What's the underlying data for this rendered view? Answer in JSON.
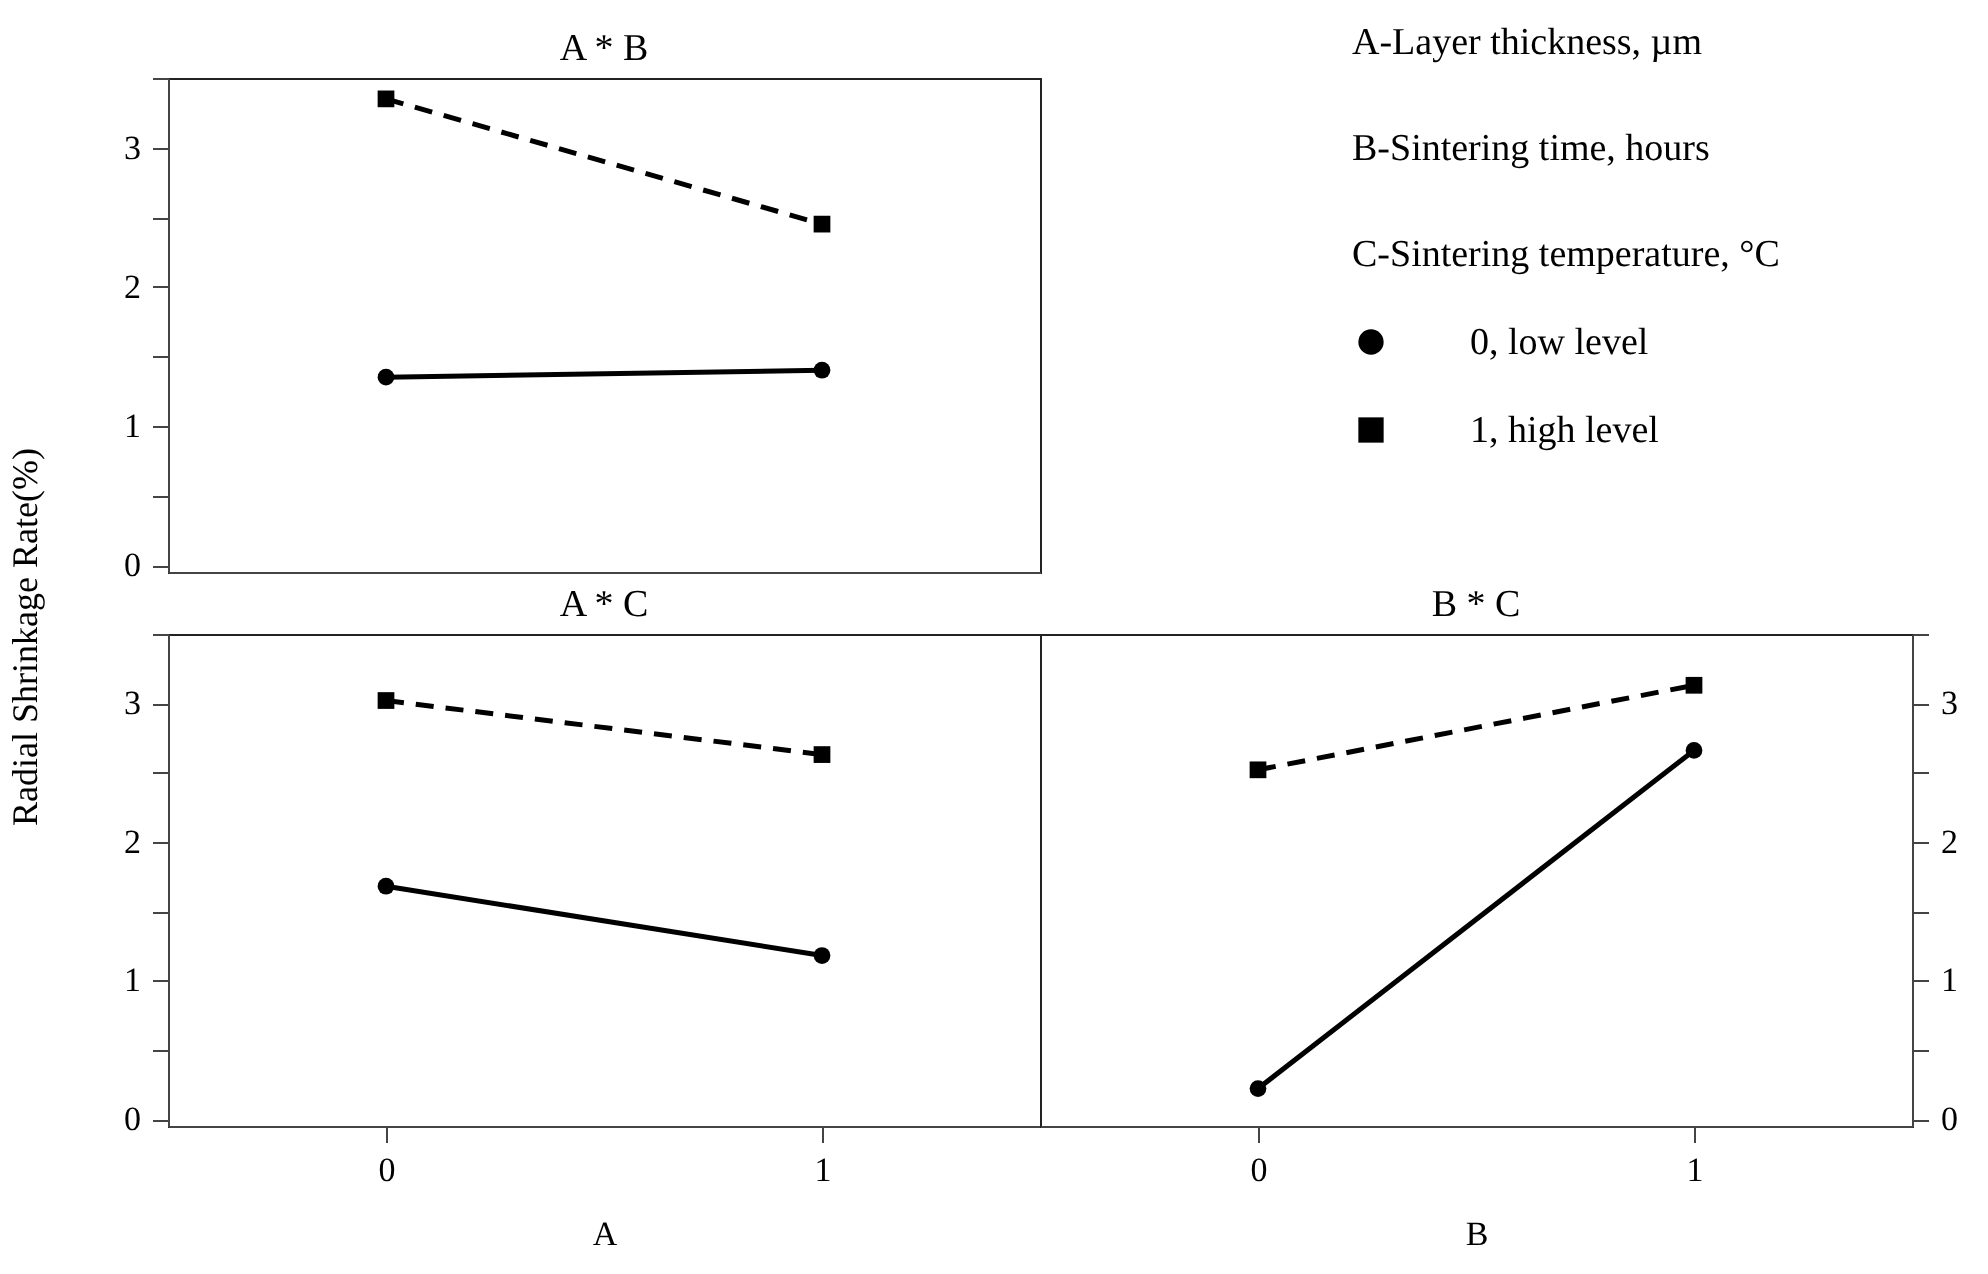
{
  "chart_data": [
    {
      "type": "line",
      "title": "A * B",
      "ylabel": "Radial Shrinkage Rate(%)",
      "categories": [
        "0",
        "1"
      ],
      "ylim": [
        -0.05,
        3.5
      ],
      "yticks": [
        0,
        {
          "value": 0.5,
          "label": null
        },
        1,
        {
          "value": 1.5,
          "label": null
        },
        2,
        {
          "value": 2.5,
          "label": null
        },
        3,
        {
          "value": 3.5,
          "label": null
        }
      ],
      "tick_labels": "y",
      "legend": "right",
      "grid": false,
      "annotations": [
        "A-Layer thickness, µm",
        "B-Sintering time, hours",
        "C-Sintering temperature, °C"
      ],
      "series": [
        {
          "name": "0, low level",
          "color": "#000000",
          "marker": "circle",
          "line_style": "solid",
          "values": [
            1.35,
            1.4
          ]
        },
        {
          "name": "1, high level",
          "color": "#000000",
          "marker": "square",
          "line_style": "dashed",
          "values": [
            3.35,
            2.45
          ]
        }
      ]
    },
    {
      "type": "line",
      "title": "A * C",
      "xlabel": "A",
      "categories": [
        "0",
        "1"
      ],
      "ylim": [
        -0.05,
        3.5
      ],
      "yticks": [
        0,
        {
          "value": 0.5,
          "label": null
        },
        1,
        {
          "value": 1.5,
          "label": null
        },
        2,
        {
          "value": 2.5,
          "label": null
        },
        3,
        {
          "value": 3.5,
          "label": null
        }
      ],
      "grid": false,
      "series": [
        {
          "color": "#000000",
          "marker": "circle",
          "line_style": "solid",
          "values": [
            1.68,
            1.18
          ]
        },
        {
          "color": "#000000",
          "marker": "square",
          "line_style": "dashed",
          "values": [
            3.02,
            2.63
          ]
        }
      ]
    },
    {
      "type": "line",
      "title": "B * C",
      "xlabel": "B",
      "categories": [
        "0",
        "1"
      ],
      "ylim": [
        -0.05,
        3.5
      ],
      "yticks": [
        0,
        {
          "value": 0.5,
          "label": null
        },
        1,
        {
          "value": 1.5,
          "label": null
        },
        2,
        {
          "value": 2.5,
          "label": null
        },
        3,
        {
          "value": 3.5,
          "label": null
        }
      ],
      "grid": false,
      "series": [
        {
          "color": "#000000",
          "marker": "circle",
          "line_style": "solid",
          "values": [
            0.22,
            2.66
          ]
        },
        {
          "color": "#000000",
          "marker": "square",
          "line_style": "dashed",
          "values": [
            2.52,
            3.13
          ]
        }
      ]
    }
  ]
}
